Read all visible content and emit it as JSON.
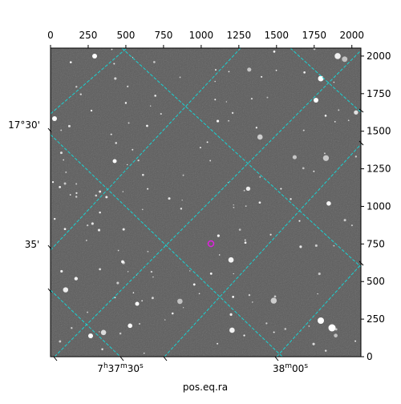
{
  "chart_data": {
    "type": "image",
    "xlabel": "pos.eq.ra",
    "xlim": [
      0,
      2060
    ],
    "xticks": [
      0,
      250,
      500,
      750,
      1000,
      1250,
      1500,
      1750,
      2000
    ],
    "ylim": [
      0,
      2053
    ],
    "yticks": [
      0,
      250,
      500,
      750,
      1000,
      1250,
      1500,
      1750,
      2000
    ],
    "ra_ticks": [
      [
        "7",
        "h",
        "37",
        "m",
        "30",
        "s"
      ],
      [
        "38",
        "m",
        "00",
        "s"
      ]
    ],
    "dec_ticks": [
      "17°30'",
      "35'"
    ]
  }
}
